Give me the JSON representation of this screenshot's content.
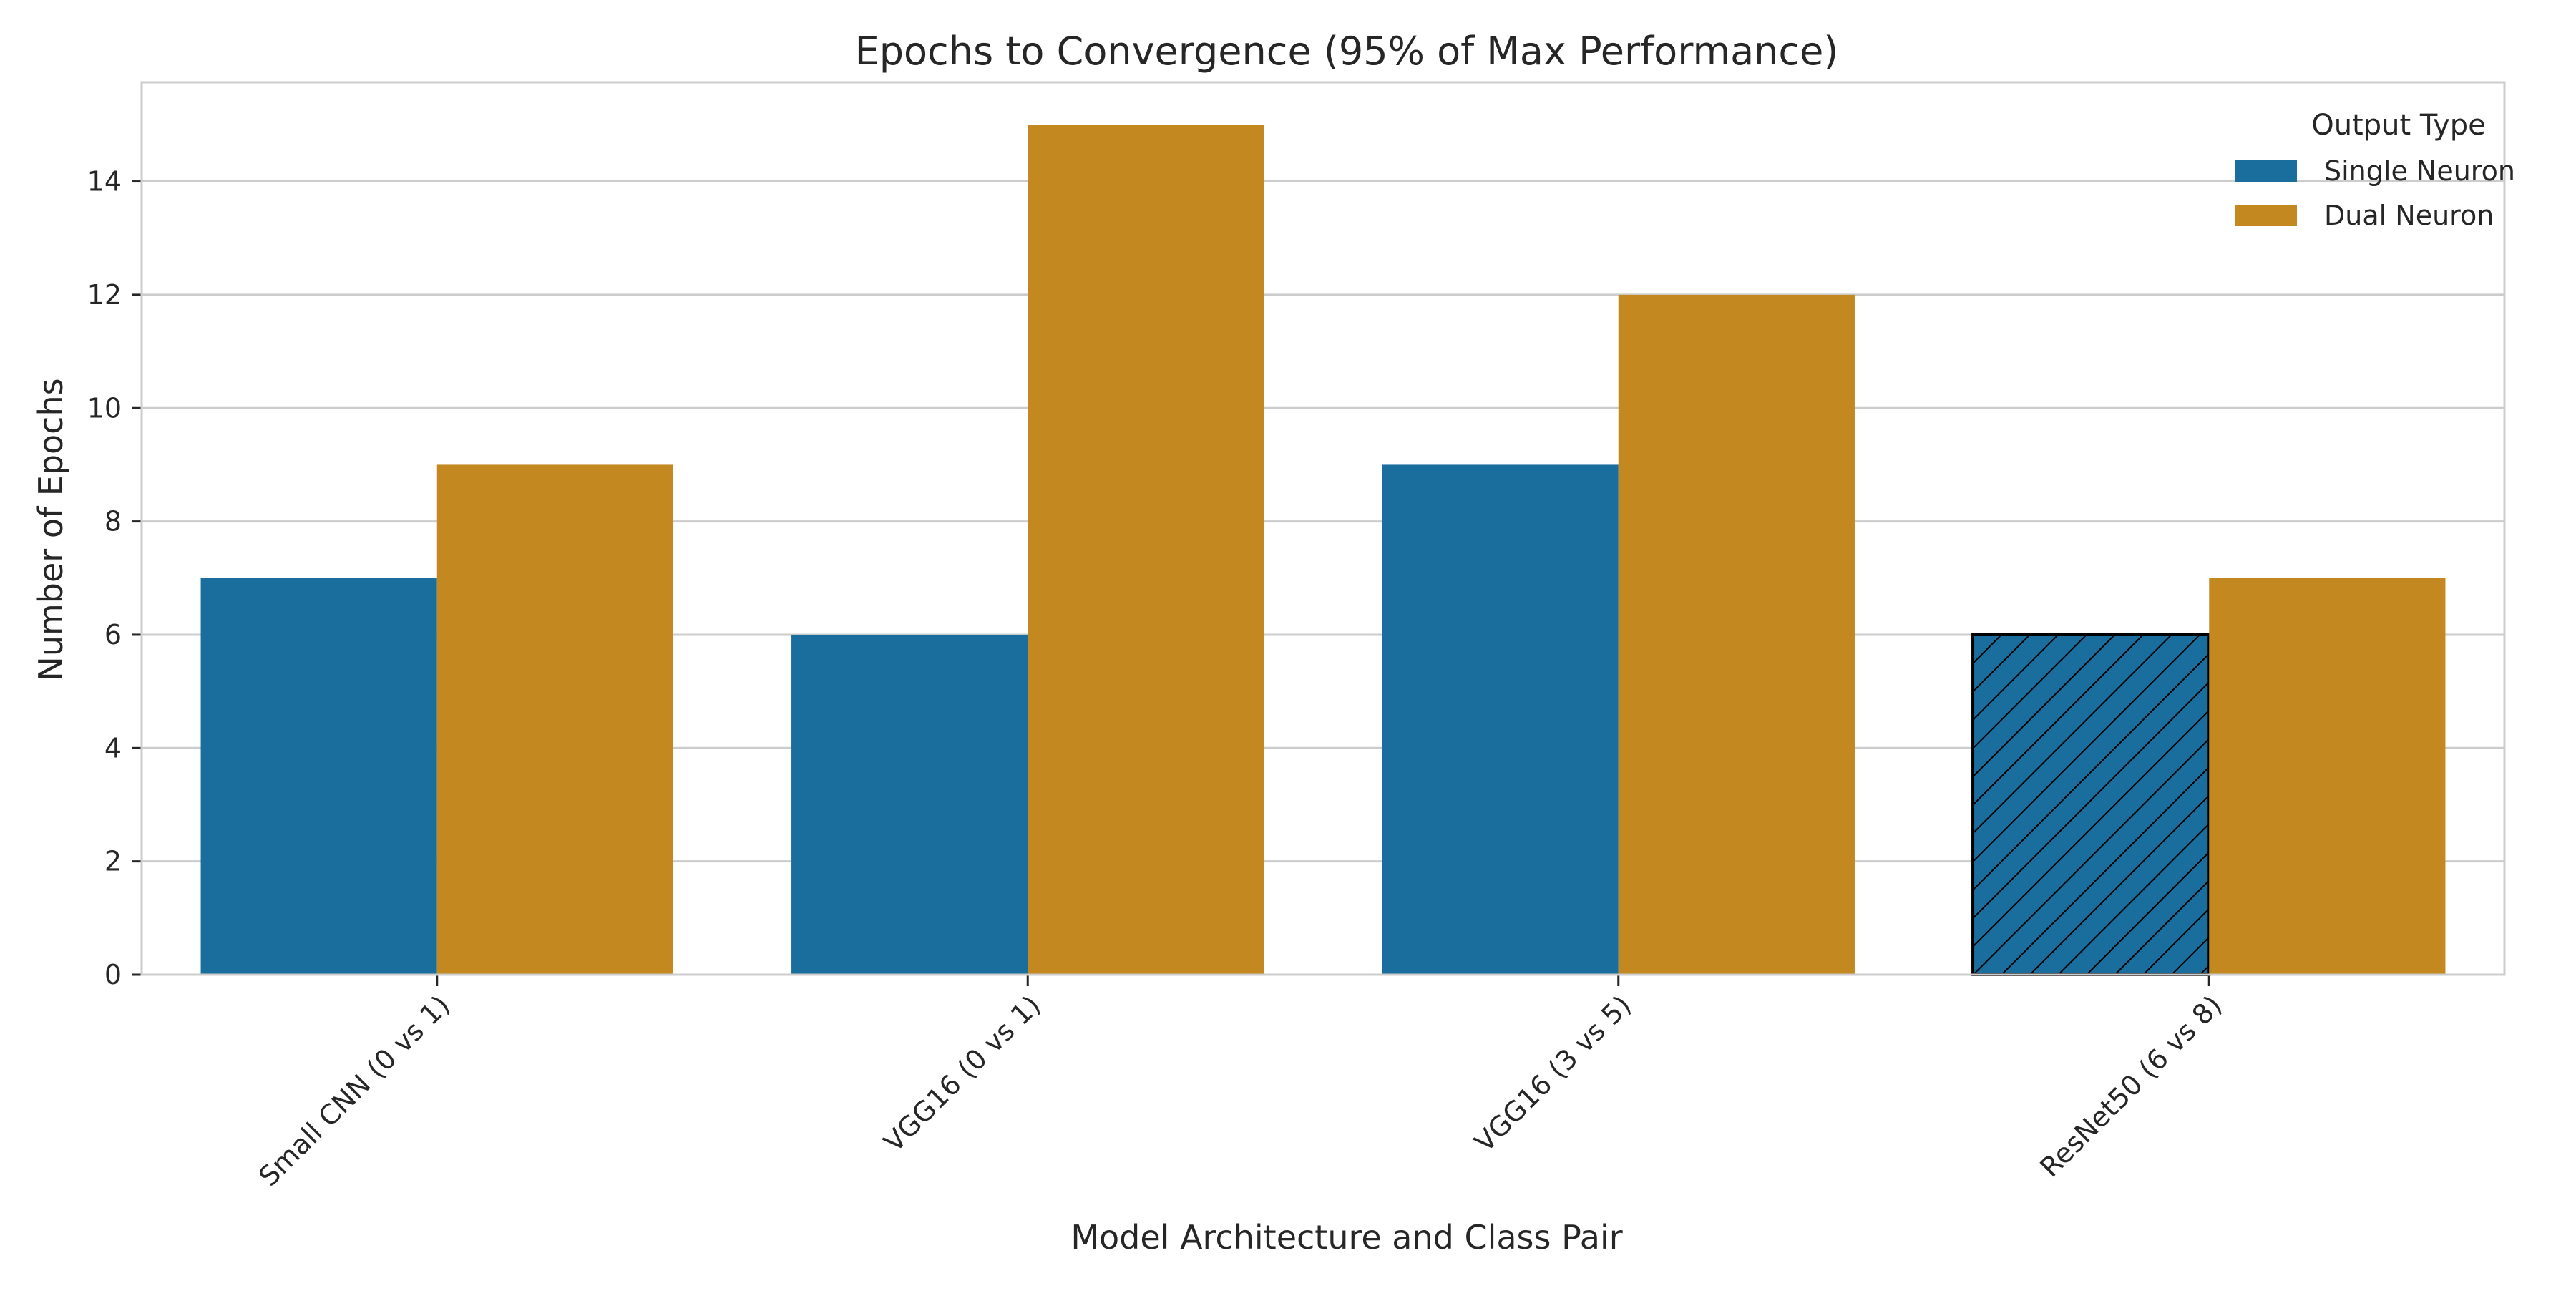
{
  "chart_data": {
    "type": "bar",
    "title": "Epochs to Convergence (95% of Max Performance)",
    "xlabel": "Model Architecture and Class Pair",
    "ylabel": "Number of Epochs",
    "categories": [
      "Small CNN (0 vs 1)",
      "VGG16 (0 vs 1)",
      "VGG16 (3 vs 5)",
      "ResNet50 (6 vs 8)"
    ],
    "series": [
      {
        "name": "Single Neuron",
        "color": "#1a6e9e",
        "values": [
          7,
          6,
          9,
          6
        ],
        "hatched": [
          false,
          false,
          false,
          true
        ]
      },
      {
        "name": "Dual Neuron",
        "color": "#c38820",
        "values": [
          9,
          15,
          12,
          7
        ],
        "hatched": [
          false,
          false,
          false,
          false
        ]
      }
    ],
    "ylim": [
      0,
      15.75
    ],
    "yticks": [
      0,
      2,
      4,
      6,
      8,
      10,
      12,
      14
    ],
    "grid": true,
    "legend": {
      "title": "Output Type",
      "position": "top-right"
    }
  }
}
